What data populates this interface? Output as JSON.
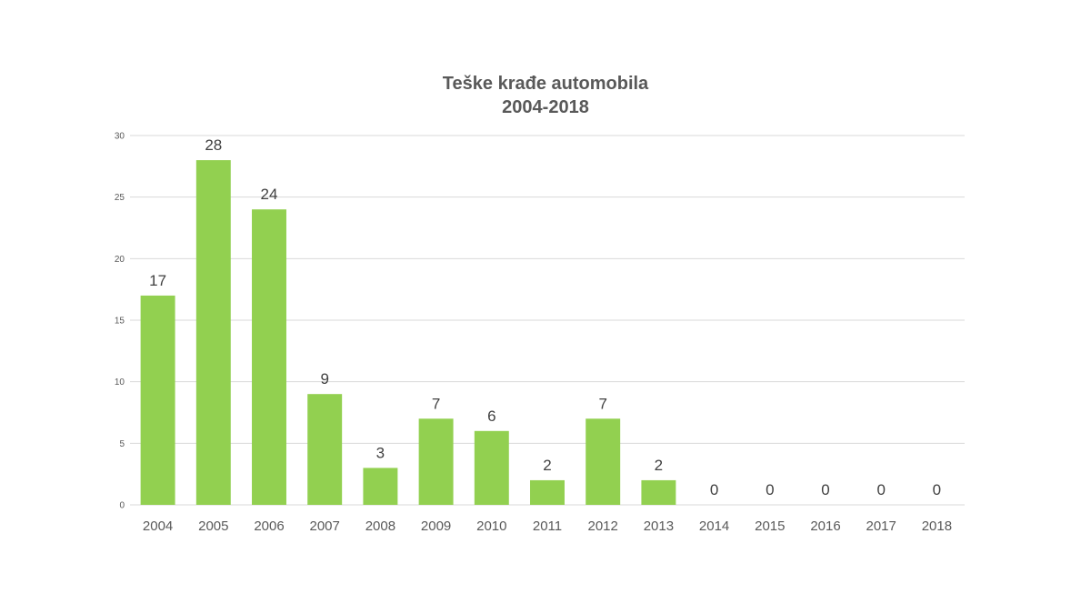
{
  "chart_data": {
    "type": "bar",
    "title": "Teške krađe automobila",
    "subtitle": "2004-2018",
    "categories": [
      "2004",
      "2005",
      "2006",
      "2007",
      "2008",
      "2009",
      "2010",
      "2011",
      "2012",
      "2013",
      "2014",
      "2015",
      "2016",
      "2017",
      "2018"
    ],
    "values": [
      17,
      28,
      24,
      9,
      3,
      7,
      6,
      2,
      7,
      2,
      0,
      0,
      0,
      0,
      0
    ],
    "ylim": [
      0,
      30
    ],
    "yticks": [
      0,
      5,
      10,
      15,
      20,
      25,
      30
    ],
    "data_labels": true,
    "grid": true,
    "legend": "none",
    "bar_color": "#92d050",
    "grid_color": "#d9d9d9"
  }
}
